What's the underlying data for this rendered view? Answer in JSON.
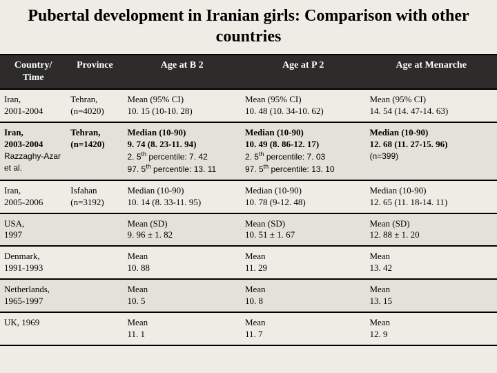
{
  "title": "Pubertal development in Iranian girls: Comparison with other countries",
  "columns": {
    "c1": "Country/ Time",
    "c2": "Province",
    "c3": "Age at B 2",
    "c4": "Age at P 2",
    "c5": "Age at Menarche"
  },
  "rows": {
    "r1": {
      "country": "Iran,\n2001-2004",
      "province": "Tehran, (n=4020)",
      "b2_l1": "Mean (95% CI)",
      "b2_l2": "10. 15 (10-10. 28)",
      "p2_l1": "Mean (95% CI)",
      "p2_l2": "10. 48 (10. 34-10. 62)",
      "m_l1": "Mean (95% CI)",
      "m_l2": "14. 54 (14. 47-14. 63)"
    },
    "r2": {
      "country_bold": "Iran,\n2003-2004",
      "country_sub": "Razzaghy-Azar et al.",
      "province": "Tehran, (n=1420)",
      "b2_l1": "Median (10-90)",
      "b2_l2": "9. 74 (8. 23-11. 94)",
      "b2_p1a": "2. 5",
      "b2_p1b": "th",
      "b2_p1c": " percentile: 7. 42",
      "b2_p2a": "97. 5",
      "b2_p2b": "th",
      "b2_p2c": " percentile: 13. 11",
      "p2_l1": "Median (10-90)",
      "p2_l2": "10. 49 (8. 86-12. 17)",
      "p2_p1a": "2. 5",
      "p2_p1b": "th",
      "p2_p1c": " percentile: 7. 03",
      "p2_p2a": "97. 5",
      "p2_p2b": "th",
      "p2_p2c": " percentile: 13. 10",
      "m_l1": "Median (10-90)",
      "m_l2": "12. 68 (11. 27-15. 96)",
      "m_sub": "(n=399)"
    },
    "r3": {
      "country": "Iran,\n2005-2006",
      "province": "Isfahan (n=3192)",
      "b2_l1": "Median (10-90)",
      "b2_l2": "10. 14 (8. 33-11. 95)",
      "p2_l1": "Median (10-90)",
      "p2_l2": "10. 78 (9-12. 48)",
      "m_l1": "Median (10-90)",
      "m_l2": "12. 65 (11. 18-14. 11)"
    },
    "r4": {
      "country": "USA,\n1997",
      "b2_l1": "Mean (SD)",
      "b2_l2": "9. 96 ± 1. 82",
      "p2_l1": "Mean (SD)",
      "p2_l2": "10. 51 ± 1. 67",
      "m_l1": "Mean (SD)",
      "m_l2": "12. 88 ± 1. 20"
    },
    "r5": {
      "country": "Denmark, 1991-1993",
      "b2_l1": "Mean",
      "b2_l2": "10. 88",
      "p2_l1": "Mean",
      "p2_l2": "11. 29",
      "m_l1": "Mean",
      "m_l2": "13. 42"
    },
    "r6": {
      "country": "Netherlands, 1965-1997",
      "b2_l1": "Mean",
      "b2_l2": "10. 5",
      "p2_l1": "Mean",
      "p2_l2": "10. 8",
      "m_l1": "Mean",
      "m_l2": "13. 15"
    },
    "r7": {
      "country": "UK, 1969",
      "b2_l1": "Mean",
      "b2_l2": "11. 1",
      "p2_l1": "Mean",
      "p2_l2": "11. 7",
      "m_l1": "Mean",
      "m_l2": "12. 9"
    }
  }
}
